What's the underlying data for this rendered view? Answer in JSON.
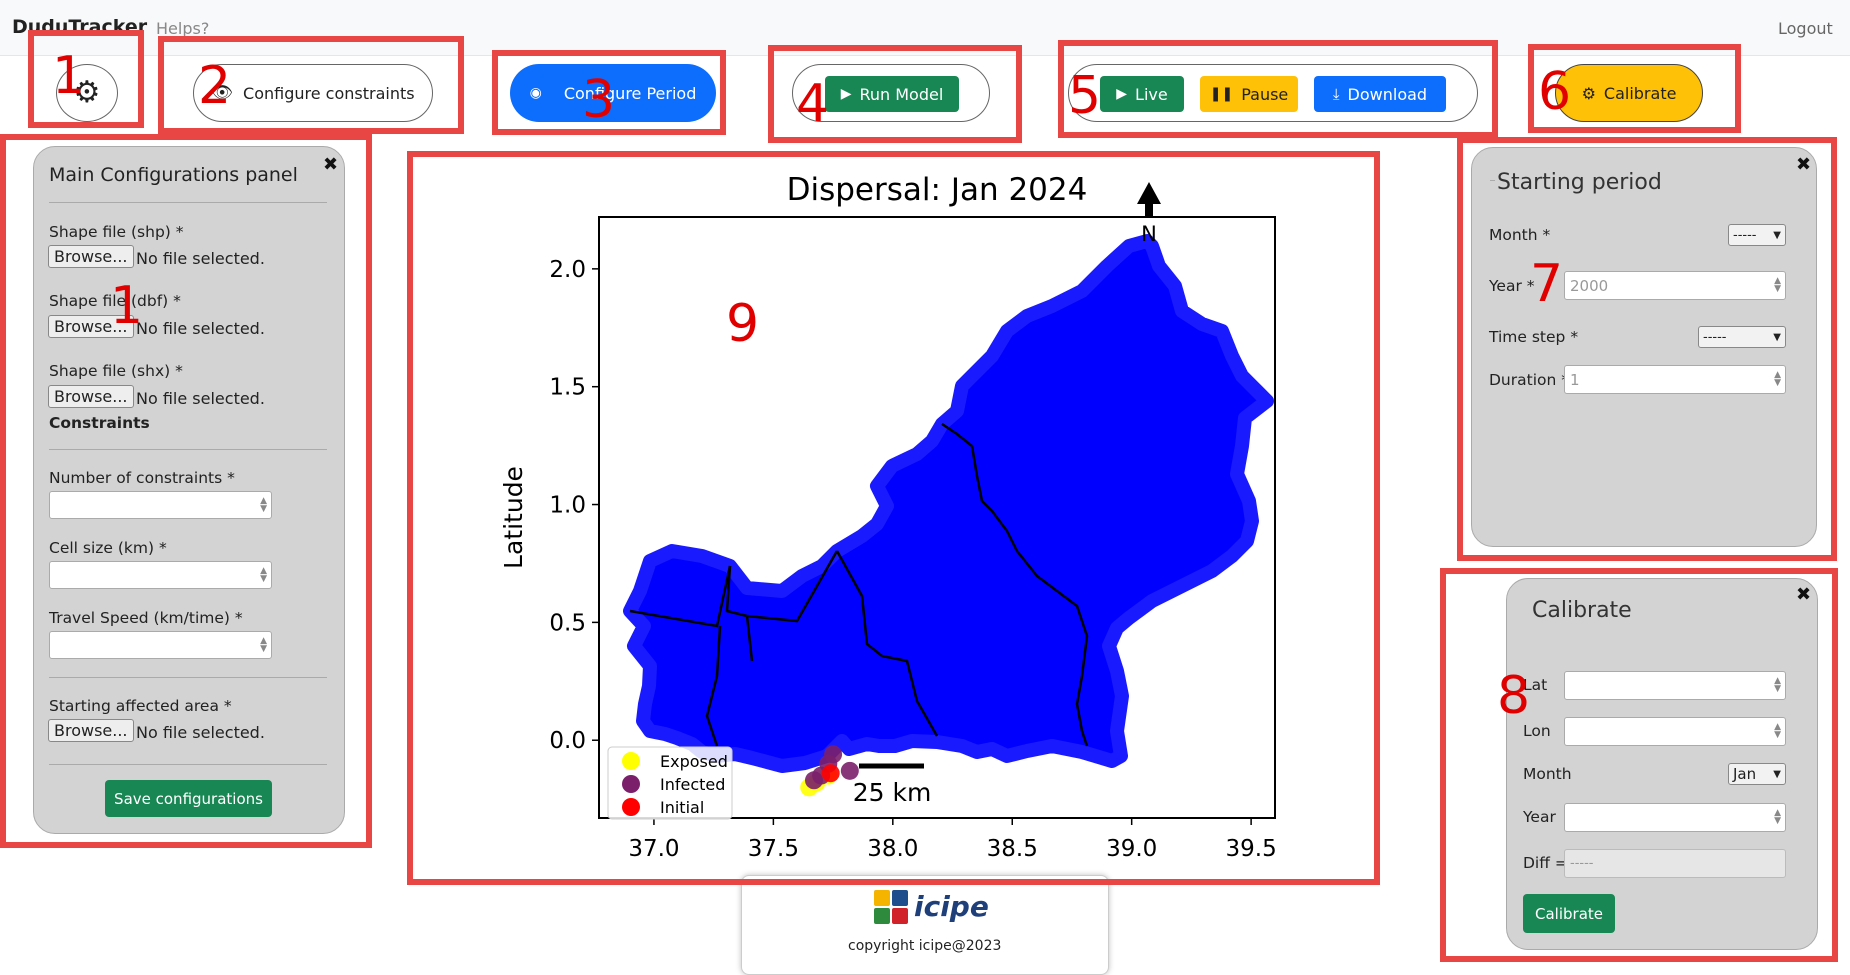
{
  "app": {
    "brand": "DuduTracker",
    "help_link": "Helps?",
    "logout": "Logout"
  },
  "toolbar": {
    "configure_constraints": "Configure constraints",
    "configure_period": "Configure Period",
    "run_model": "Run Model",
    "live": "Live",
    "pause": "Pause",
    "download": "Download",
    "calibrate": "Calibrate"
  },
  "annotations": [
    "1",
    "2",
    "3",
    "4",
    "5",
    "6",
    "1",
    "7",
    "8",
    "9"
  ],
  "main_panel": {
    "title": "Main Configurations panel",
    "close": "✖",
    "shp_label": "Shape file (shp) *",
    "dbf_label": "Shape file (dbf) *",
    "shx_label": "Shape file (shx) *",
    "browse": "Browse...",
    "no_file": "No file selected.",
    "constraints_heading": "Constraints",
    "num_constraints_label": "Number of constraints *",
    "cell_size_label": "Cell size (km) *",
    "travel_speed_label": "Travel Speed (km/time) *",
    "starting_area_label": "Starting affected area *",
    "save_button": "Save configurations"
  },
  "starting_period": {
    "title": "Starting period",
    "close": "✖",
    "month_label": "Month *",
    "month_value": "-----",
    "year_label": "Year *",
    "year_placeholder": "2000",
    "time_step_label": "Time step *",
    "time_step_value": "-----",
    "duration_label": "Duration *",
    "duration_placeholder": "1"
  },
  "calibrate_panel": {
    "title": "Calibrate",
    "close": "✖",
    "lat_label": "Lat",
    "lon_label": "Lon",
    "month_label": "Month",
    "month_value": "Jan",
    "year_label": "Year",
    "diff_label": "Diff =",
    "diff_placeholder": "-----",
    "button": "Calibrate"
  },
  "map": {
    "title": "Dispersal: Jan 2024",
    "ylabel": "Latitude",
    "north": "N",
    "scale_label": "25 km",
    "xticks": [
      "37.0",
      "37.5",
      "38.0",
      "38.5",
      "39.0",
      "39.5"
    ],
    "yticks": [
      "0.0",
      "0.5",
      "1.0",
      "1.5",
      "2.0"
    ],
    "legend": [
      {
        "label": "Exposed",
        "color": "#ffff00"
      },
      {
        "label": "Infected",
        "color": "#7b1f6b"
      },
      {
        "label": "Initial",
        "color": "#ff0000"
      }
    ]
  },
  "chart_data": {
    "type": "scatter",
    "title": "Dispersal: Jan 2024",
    "xlabel": "",
    "ylabel": "Latitude",
    "xlim": [
      36.77,
      39.6
    ],
    "ylim": [
      -0.33,
      2.22
    ],
    "series": [
      {
        "name": "Exposed",
        "color": "#ffff00",
        "points": [
          [
            37.65,
            -0.2
          ],
          [
            37.68,
            -0.18
          ],
          [
            37.73,
            -0.15
          ]
        ]
      },
      {
        "name": "Infected",
        "color": "#7b1f6b",
        "points": [
          [
            37.67,
            -0.17
          ],
          [
            37.7,
            -0.15
          ],
          [
            37.73,
            -0.1
          ],
          [
            37.75,
            -0.06
          ],
          [
            37.82,
            -0.13
          ]
        ]
      },
      {
        "name": "Initial",
        "color": "#ff0000",
        "points": [
          [
            37.74,
            -0.14
          ]
        ]
      }
    ],
    "region_fill": "#0000ff",
    "legend_position": "lower-left"
  },
  "footer": {
    "logo_text": "icipe",
    "copyright": "copyright icipe@2023"
  }
}
